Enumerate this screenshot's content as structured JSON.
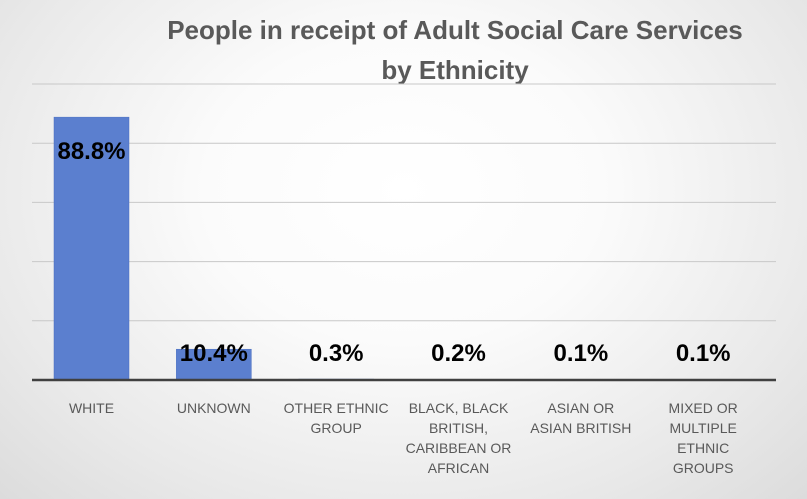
{
  "chart_data": {
    "type": "bar",
    "title_lines": [
      "People in receipt of Adult Social Care Services",
      "by Ethnicity"
    ],
    "categories": [
      [
        "WHITE"
      ],
      [
        "UNKNOWN"
      ],
      [
        "OTHER ETHNIC",
        "GROUP"
      ],
      [
        "BLACK, BLACK",
        "BRITISH,",
        "CARIBBEAN OR",
        "AFRICAN"
      ],
      [
        "ASIAN OR",
        "ASIAN BRITISH"
      ],
      [
        "MIXED OR",
        "MULTIPLE",
        "ETHNIC",
        "GROUPS"
      ]
    ],
    "values": [
      88.8,
      10.4,
      0.3,
      0.2,
      0.1,
      0.1
    ],
    "data_labels": [
      "88.8%",
      "10.4%",
      "0.3%",
      "0.2%",
      "0.1%",
      "0.1%"
    ],
    "ylim": [
      0,
      100
    ],
    "grid": true,
    "legend": "none",
    "colors": {
      "bar": "#5b7fcf",
      "bar_edge": "#4a6fc0",
      "grid": "#c8c8c8",
      "axis": "#404040"
    }
  }
}
